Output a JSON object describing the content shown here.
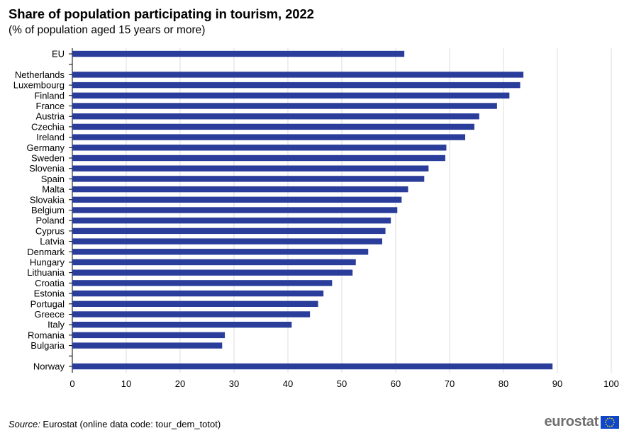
{
  "title": "Share of population participating in tourism, 2022",
  "subtitle": "(% of population aged 15 years or more)",
  "source": {
    "label": "Source:",
    "text": " Eurostat (online data code: tour_dem_totot)"
  },
  "logo_text": "eurostat",
  "colors": {
    "bar": "#2a3d9b",
    "grid": "#dcdcdc",
    "axis": "#000000",
    "eu_flag": "#0e47cb",
    "eu_stars": "#ffde00"
  },
  "chart_data": {
    "type": "bar",
    "orientation": "horizontal",
    "title": "Share of population participating in tourism, 2022",
    "subtitle": "(% of population aged 15 years or more)",
    "xlim": [
      0,
      100
    ],
    "x_ticks": [
      0,
      10,
      20,
      30,
      40,
      50,
      60,
      70,
      80,
      90,
      100
    ],
    "grid": true,
    "legend": "none",
    "categories": [
      "EU",
      "",
      "Netherlands",
      "Luxembourg",
      "Finland",
      "France",
      "Austria",
      "Czechia",
      "Ireland",
      "Germany",
      "Sweden",
      "Slovenia",
      "Spain",
      "Malta",
      "Slovakia",
      "Belgium",
      "Poland",
      "Cyprus",
      "Latvia",
      "Denmark",
      "Hungary",
      "Lithuania",
      "Croatia",
      "Estonia",
      "Portugal",
      "Greece",
      "Italy",
      "Romania",
      "Bulgaria",
      "",
      "Norway"
    ],
    "values": [
      61.6,
      null,
      83.7,
      83.1,
      81.1,
      78.8,
      75.5,
      74.6,
      72.9,
      69.4,
      69.2,
      66.1,
      65.3,
      62.3,
      61.1,
      60.3,
      59.1,
      58.1,
      57.5,
      54.9,
      52.6,
      52.0,
      48.2,
      46.6,
      45.6,
      44.1,
      40.7,
      28.3,
      27.8,
      null,
      89.1
    ]
  }
}
